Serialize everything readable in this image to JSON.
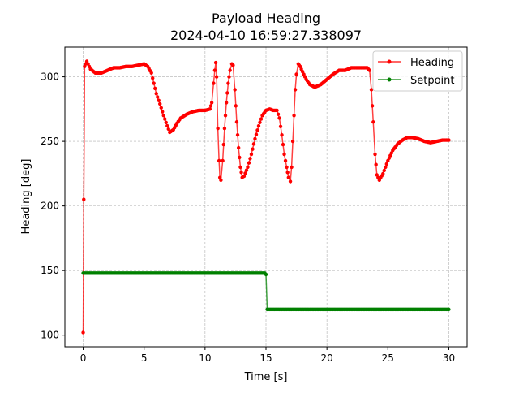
{
  "chart_data": {
    "type": "line",
    "title": "Payload Heading",
    "subtitle": "2024-04-10 16:59:27.338097",
    "xlabel": "Time [s]",
    "ylabel": "Heading [deg]",
    "xlim": [
      -1.5,
      31.5
    ],
    "ylim": [
      91,
      323
    ],
    "xticks": [
      0,
      5,
      10,
      15,
      20,
      25,
      30
    ],
    "yticks": [
      100,
      150,
      200,
      250,
      300
    ],
    "grid": true,
    "legend_position": "top-right",
    "series": [
      {
        "name": "Heading",
        "color": "#ff0000",
        "marker": "dot",
        "keypoints": [
          [
            0.0,
            102
          ],
          [
            0.05,
            205
          ],
          [
            0.12,
            308
          ],
          [
            0.3,
            312
          ],
          [
            0.6,
            306
          ],
          [
            1.0,
            303
          ],
          [
            1.5,
            303
          ],
          [
            2.0,
            305
          ],
          [
            2.5,
            307
          ],
          [
            3.0,
            307
          ],
          [
            3.5,
            308
          ],
          [
            4.0,
            308
          ],
          [
            4.5,
            309
          ],
          [
            5.0,
            310
          ],
          [
            5.3,
            308
          ],
          [
            5.6,
            303
          ],
          [
            5.8,
            295
          ],
          [
            6.0,
            287
          ],
          [
            6.3,
            279
          ],
          [
            6.6,
            270
          ],
          [
            6.9,
            262
          ],
          [
            7.1,
            257
          ],
          [
            7.4,
            259
          ],
          [
            7.7,
            264
          ],
          [
            8.0,
            268
          ],
          [
            8.5,
            271
          ],
          [
            9.0,
            273
          ],
          [
            9.5,
            274
          ],
          [
            10.0,
            274
          ],
          [
            10.4,
            275
          ],
          [
            10.55,
            280
          ],
          [
            10.7,
            295
          ],
          [
            10.8,
            305
          ],
          [
            10.88,
            311
          ],
          [
            10.95,
            300
          ],
          [
            11.05,
            260
          ],
          [
            11.15,
            235
          ],
          [
            11.22,
            222
          ],
          [
            11.3,
            220
          ],
          [
            11.45,
            235
          ],
          [
            11.6,
            260
          ],
          [
            11.75,
            280
          ],
          [
            11.9,
            295
          ],
          [
            12.05,
            305
          ],
          [
            12.2,
            310
          ],
          [
            12.3,
            309
          ],
          [
            12.45,
            290
          ],
          [
            12.6,
            265
          ],
          [
            12.75,
            245
          ],
          [
            12.9,
            230
          ],
          [
            13.05,
            222
          ],
          [
            13.2,
            223
          ],
          [
            13.5,
            230
          ],
          [
            13.8,
            240
          ],
          [
            14.1,
            252
          ],
          [
            14.4,
            262
          ],
          [
            14.7,
            270
          ],
          [
            15.0,
            274
          ],
          [
            15.3,
            275
          ],
          [
            15.6,
            274
          ],
          [
            15.9,
            274
          ],
          [
            16.1,
            268
          ],
          [
            16.3,
            255
          ],
          [
            16.5,
            240
          ],
          [
            16.7,
            230
          ],
          [
            16.85,
            222
          ],
          [
            17.0,
            219
          ],
          [
            17.1,
            230
          ],
          [
            17.2,
            250
          ],
          [
            17.3,
            270
          ],
          [
            17.4,
            290
          ],
          [
            17.5,
            302
          ],
          [
            17.65,
            310
          ],
          [
            17.8,
            308
          ],
          [
            18.0,
            304
          ],
          [
            18.3,
            298
          ],
          [
            18.6,
            294
          ],
          [
            19.0,
            292
          ],
          [
            19.5,
            294
          ],
          [
            20.0,
            298
          ],
          [
            20.5,
            302
          ],
          [
            21.0,
            305
          ],
          [
            21.5,
            305
          ],
          [
            22.0,
            307
          ],
          [
            22.5,
            307
          ],
          [
            23.0,
            307
          ],
          [
            23.3,
            307
          ],
          [
            23.5,
            305
          ],
          [
            23.65,
            290
          ],
          [
            23.8,
            265
          ],
          [
            23.95,
            240
          ],
          [
            24.1,
            224
          ],
          [
            24.3,
            220
          ],
          [
            24.6,
            225
          ],
          [
            25.0,
            235
          ],
          [
            25.4,
            243
          ],
          [
            25.8,
            248
          ],
          [
            26.2,
            251
          ],
          [
            26.6,
            253
          ],
          [
            27.0,
            253
          ],
          [
            27.5,
            252
          ],
          [
            28.0,
            250
          ],
          [
            28.5,
            249
          ],
          [
            29.0,
            250
          ],
          [
            29.5,
            251
          ],
          [
            30.0,
            251
          ]
        ]
      },
      {
        "name": "Setpoint",
        "color": "#008000",
        "marker": "dot",
        "keypoints": [
          [
            0.0,
            148
          ],
          [
            14.9,
            148
          ],
          [
            15.0,
            147
          ],
          [
            15.1,
            120
          ],
          [
            30.0,
            120
          ]
        ]
      }
    ]
  }
}
